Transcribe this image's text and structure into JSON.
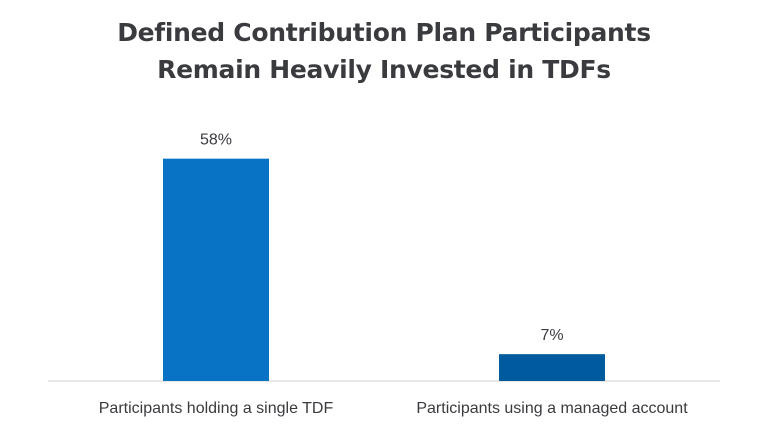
{
  "title": {
    "line1": "Defined Contribution Plan Participants",
    "line2": "Remain Heavily Invested in TDFs"
  },
  "chart_data": {
    "type": "bar",
    "categories": [
      "Participants holding a single TDF",
      "Participants using a managed account"
    ],
    "values": [
      58,
      7
    ],
    "value_labels": [
      "58%",
      "7%"
    ],
    "colors": [
      "#0872c4",
      "#005a9e"
    ],
    "ylim": [
      0,
      60
    ],
    "grid": false,
    "legend": "none"
  }
}
